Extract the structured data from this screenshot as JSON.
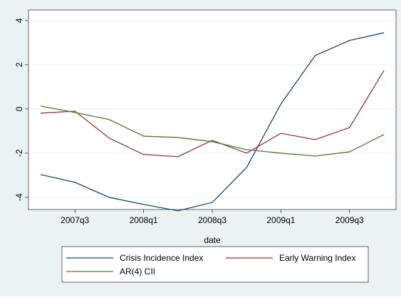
{
  "chart_data": {
    "type": "line",
    "categories": [
      null,
      "2007q3",
      null,
      "2008q1",
      null,
      "2008q3",
      null,
      "2009q1",
      null,
      "2009q3",
      null
    ],
    "x_label": "date",
    "series": [
      {
        "name": "Crisis Incidence Index",
        "color": "#1a476f",
        "values": [
          -2.97,
          -3.32,
          -4.0,
          -4.32,
          -4.61,
          -4.23,
          -2.65,
          0.23,
          2.42,
          3.1,
          3.45
        ]
      },
      {
        "name": "Early Warning Index",
        "color": "#90353b",
        "values": [
          -0.19,
          -0.1,
          -1.32,
          -2.06,
          -2.16,
          -1.42,
          -2.0,
          -1.1,
          -1.39,
          -0.84,
          1.74
        ]
      },
      {
        "name": "AR(4) CII",
        "color": "#55752f",
        "values": [
          0.13,
          -0.16,
          -0.48,
          -1.23,
          -1.29,
          -1.48,
          -1.84,
          -2.0,
          -2.13,
          -1.94,
          -1.16
        ]
      }
    ],
    "ylim": [
      -4.55,
      4.48
    ],
    "yticks": [
      -4,
      -2,
      0,
      2,
      4
    ],
    "grid": true,
    "legend": "bottom"
  }
}
